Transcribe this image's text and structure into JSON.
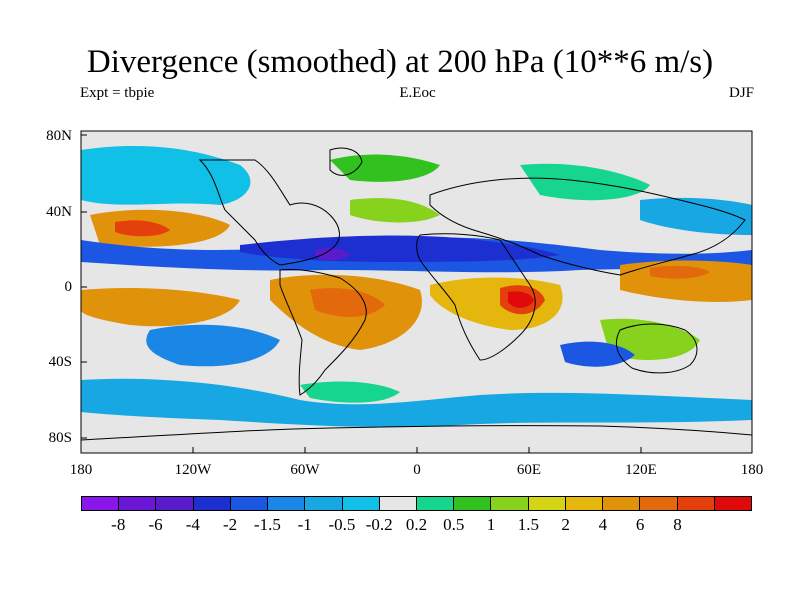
{
  "title": "Divergence (smoothed) at 200 hPa (10**6 m/s)",
  "experiment": "Expt = tbpie",
  "center_label": "E.Eoc",
  "season": "DJF",
  "map": {
    "lat_labels": [
      "80N",
      "40N",
      "0",
      "40S",
      "80S"
    ],
    "lon_labels": [
      "180",
      "120W",
      "60W",
      "0",
      "60E",
      "120E",
      "180"
    ],
    "background_color": "#e6e6e6"
  },
  "colorbar": {
    "colors": [
      "#8a17ea",
      "#6c16d6",
      "#5a1ccb",
      "#1e2fd2",
      "#1b57e2",
      "#1a86e6",
      "#17a7e3",
      "#10c0e6",
      "#e6e6e6",
      "#15d58f",
      "#31c21f",
      "#86d21c",
      "#d2d414",
      "#e4b60e",
      "#e0920b",
      "#e26a0c",
      "#e3400c",
      "#e00a0a"
    ],
    "labels": [
      "-8",
      "-6",
      "-4",
      "-2",
      "-1.5",
      "-1",
      "-0.5",
      "-0.2",
      "0.2",
      "0.5",
      "1",
      "1.5",
      "2",
      "4",
      "6",
      "8"
    ]
  }
}
